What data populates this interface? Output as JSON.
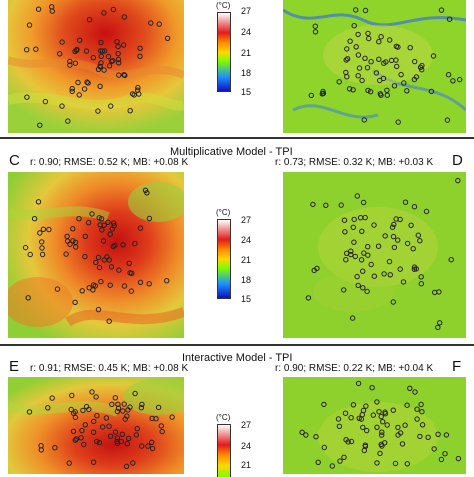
{
  "colorbar": {
    "unit": "(°C)",
    "ticks": [
      "27",
      "24",
      "21",
      "18",
      "15"
    ],
    "colors": [
      "#ffffff",
      "#e31a1c",
      "#ff8c00",
      "#ffd700",
      "#7cfc00",
      "#1e90ff",
      "#1010c0"
    ]
  },
  "row1": {
    "colorbar_ticks": [
      "27",
      "24",
      "21",
      "18",
      "15"
    ]
  },
  "row2": {
    "title": "Multiplicative Model - TPI",
    "left_letter": "C",
    "right_letter": "D",
    "left_stats": "r: 0.90; RMSE: 0.52 K; MB: +0.08 K",
    "right_stats": "r: 0.73; RMSE: 0.32 K; MB: +0.03 K",
    "colorbar_ticks": [
      "27",
      "24",
      "21",
      "18",
      "15"
    ]
  },
  "row3": {
    "title": "Interactive Model - TPI",
    "left_letter": "E",
    "right_letter": "F",
    "left_stats": "r: 0.91; RMSE: 0.45 K; MB: +0.08 K",
    "right_stats": "r: 0.90; RMSE: 0.22 K; MB: +0.04 K",
    "colorbar_ticks": [
      "27",
      "24",
      "21"
    ]
  },
  "palette": {
    "hot_map_base": "#e0542b",
    "hot_map_edge": "#8ccf2a",
    "green_map_base": "#8fd42a",
    "blue_accent": "#3050d0"
  }
}
